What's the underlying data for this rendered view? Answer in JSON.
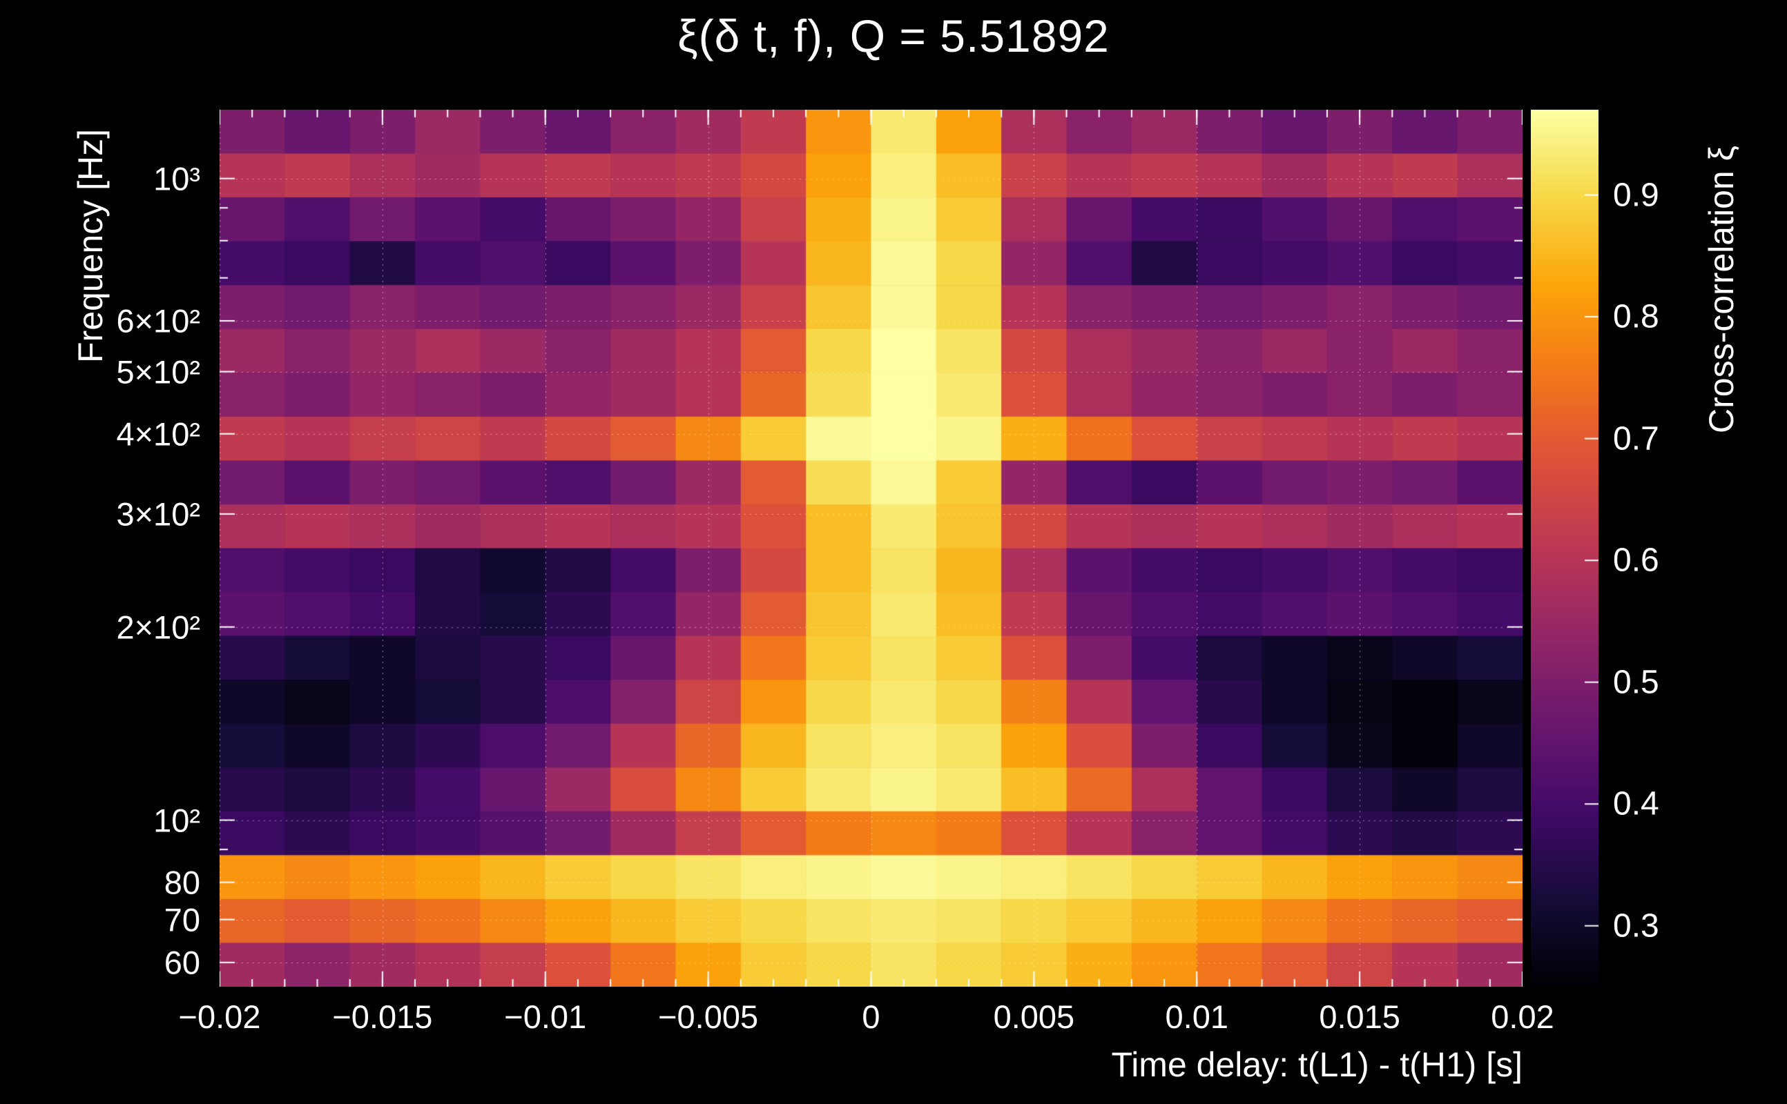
{
  "background_color": "#000000",
  "text_color": "#ffffff",
  "chart_data": {
    "type": "heatmap",
    "title": "ξ(δ t, f), Q = 5.51892",
    "xlabel": "Time delay: t(L1) - t(H1) [s]",
    "ylabel": "Frequency [Hz]",
    "colorbar_label": "Cross-correlation ξ",
    "x_range": [
      -0.02,
      0.02
    ],
    "x_ticks": [
      -0.02,
      -0.015,
      -0.01,
      -0.005,
      0,
      0.005,
      0.01,
      0.015,
      0.02
    ],
    "x_tick_labels": [
      "−0.02",
      "−0.015",
      "−0.01",
      "−0.005",
      "0",
      "0.005",
      "0.01",
      "0.015",
      "0.02"
    ],
    "x_minor_tick_step": 0.001,
    "y_scale": "log",
    "y_range": [
      55,
      1280
    ],
    "y_ticks": [
      1000,
      600,
      500,
      400,
      300,
      200,
      100,
      80,
      70,
      60
    ],
    "y_tick_labels": [
      "10³",
      "6×10²",
      "5×10²",
      "4×10²",
      "3×10²",
      "2×10²",
      "10²",
      "80",
      "70",
      "60"
    ],
    "y_minor_ticks": [
      90,
      700,
      800,
      900
    ],
    "grid": "dotted-white",
    "legend_position": "right-colorbar",
    "color_range": [
      0.25,
      0.97
    ],
    "colorbar_ticks": [
      0.3,
      0.4,
      0.5,
      0.6,
      0.7,
      0.8,
      0.9
    ],
    "colorbar_tick_labels": [
      "0.3",
      "0.4",
      "0.5",
      "0.6",
      "0.7",
      "0.8",
      "0.9"
    ],
    "colormap": "inferno",
    "colormap_stops": [
      "#000004",
      "#160b39",
      "#420a68",
      "#6a176e",
      "#932667",
      "#bc3754",
      "#dd513a",
      "#f37819",
      "#fca50a",
      "#f6d746",
      "#fcffa4"
    ],
    "x_bins": {
      "n": 20,
      "min": -0.02,
      "max": 0.02
    },
    "y_bins": {
      "n": 20,
      "min": 55,
      "max": 1280,
      "scale": "log"
    },
    "y_bin_centers_hz": [
      1173,
      1003,
      857,
      733,
      626,
      535,
      458,
      391,
      334,
      286,
      244,
      209,
      178,
      153,
      130,
      111,
      95,
      82,
      70,
      60
    ],
    "row_order": "top-to-bottom (high frequency to low frequency)",
    "values": [
      [
        0.5,
        0.46,
        0.5,
        0.55,
        0.5,
        0.46,
        0.52,
        0.56,
        0.62,
        0.8,
        0.93,
        0.82,
        0.58,
        0.52,
        0.55,
        0.5,
        0.46,
        0.5,
        0.46,
        0.5
      ],
      [
        0.6,
        0.62,
        0.58,
        0.56,
        0.6,
        0.62,
        0.6,
        0.62,
        0.66,
        0.82,
        0.94,
        0.86,
        0.64,
        0.6,
        0.62,
        0.6,
        0.56,
        0.6,
        0.62,
        0.58
      ],
      [
        0.46,
        0.42,
        0.48,
        0.44,
        0.4,
        0.46,
        0.5,
        0.54,
        0.64,
        0.84,
        0.95,
        0.88,
        0.58,
        0.46,
        0.4,
        0.38,
        0.42,
        0.46,
        0.42,
        0.44
      ],
      [
        0.4,
        0.38,
        0.34,
        0.4,
        0.42,
        0.38,
        0.44,
        0.5,
        0.6,
        0.85,
        0.96,
        0.9,
        0.54,
        0.42,
        0.34,
        0.38,
        0.4,
        0.42,
        0.38,
        0.4
      ],
      [
        0.5,
        0.48,
        0.52,
        0.5,
        0.48,
        0.5,
        0.52,
        0.55,
        0.64,
        0.87,
        0.96,
        0.9,
        0.6,
        0.52,
        0.5,
        0.48,
        0.5,
        0.52,
        0.5,
        0.48
      ],
      [
        0.55,
        0.52,
        0.55,
        0.58,
        0.55,
        0.52,
        0.56,
        0.6,
        0.7,
        0.9,
        0.97,
        0.92,
        0.66,
        0.58,
        0.55,
        0.52,
        0.55,
        0.52,
        0.55,
        0.52
      ],
      [
        0.52,
        0.5,
        0.54,
        0.52,
        0.5,
        0.54,
        0.56,
        0.6,
        0.72,
        0.91,
        0.97,
        0.93,
        0.68,
        0.58,
        0.54,
        0.52,
        0.5,
        0.52,
        0.5,
        0.52
      ],
      [
        0.62,
        0.6,
        0.63,
        0.65,
        0.62,
        0.66,
        0.7,
        0.78,
        0.88,
        0.96,
        0.98,
        0.95,
        0.84,
        0.74,
        0.68,
        0.64,
        0.62,
        0.6,
        0.62,
        0.6
      ],
      [
        0.48,
        0.44,
        0.5,
        0.48,
        0.44,
        0.42,
        0.48,
        0.55,
        0.7,
        0.91,
        0.96,
        0.88,
        0.54,
        0.42,
        0.38,
        0.44,
        0.48,
        0.5,
        0.48,
        0.44
      ],
      [
        0.58,
        0.6,
        0.58,
        0.56,
        0.58,
        0.6,
        0.58,
        0.6,
        0.68,
        0.86,
        0.93,
        0.87,
        0.66,
        0.6,
        0.58,
        0.6,
        0.58,
        0.56,
        0.58,
        0.6
      ],
      [
        0.42,
        0.4,
        0.38,
        0.34,
        0.31,
        0.34,
        0.4,
        0.5,
        0.66,
        0.86,
        0.92,
        0.85,
        0.58,
        0.44,
        0.4,
        0.38,
        0.4,
        0.42,
        0.4,
        0.38
      ],
      [
        0.44,
        0.42,
        0.4,
        0.34,
        0.32,
        0.36,
        0.42,
        0.54,
        0.7,
        0.87,
        0.93,
        0.86,
        0.62,
        0.46,
        0.42,
        0.4,
        0.42,
        0.44,
        0.42,
        0.4
      ],
      [
        0.35,
        0.32,
        0.3,
        0.33,
        0.35,
        0.38,
        0.46,
        0.6,
        0.75,
        0.88,
        0.92,
        0.88,
        0.68,
        0.5,
        0.4,
        0.33,
        0.3,
        0.28,
        0.3,
        0.32
      ],
      [
        0.3,
        0.28,
        0.3,
        0.32,
        0.35,
        0.41,
        0.51,
        0.65,
        0.8,
        0.9,
        0.93,
        0.9,
        0.77,
        0.6,
        0.45,
        0.35,
        0.3,
        0.27,
        0.26,
        0.28
      ],
      [
        0.32,
        0.3,
        0.33,
        0.36,
        0.41,
        0.48,
        0.6,
        0.72,
        0.85,
        0.92,
        0.94,
        0.92,
        0.82,
        0.67,
        0.5,
        0.38,
        0.32,
        0.28,
        0.26,
        0.3
      ],
      [
        0.35,
        0.33,
        0.36,
        0.4,
        0.46,
        0.55,
        0.67,
        0.78,
        0.88,
        0.93,
        0.95,
        0.93,
        0.86,
        0.73,
        0.58,
        0.45,
        0.38,
        0.33,
        0.3,
        0.33
      ],
      [
        0.38,
        0.36,
        0.38,
        0.4,
        0.43,
        0.48,
        0.56,
        0.63,
        0.7,
        0.76,
        0.78,
        0.76,
        0.68,
        0.6,
        0.52,
        0.45,
        0.4,
        0.36,
        0.34,
        0.36
      ],
      [
        0.8,
        0.78,
        0.8,
        0.82,
        0.85,
        0.88,
        0.9,
        0.92,
        0.94,
        0.95,
        0.96,
        0.95,
        0.94,
        0.92,
        0.9,
        0.88,
        0.85,
        0.82,
        0.8,
        0.78
      ],
      [
        0.72,
        0.7,
        0.72,
        0.74,
        0.78,
        0.82,
        0.85,
        0.88,
        0.9,
        0.92,
        0.93,
        0.92,
        0.9,
        0.88,
        0.85,
        0.82,
        0.78,
        0.74,
        0.72,
        0.7
      ],
      [
        0.56,
        0.53,
        0.56,
        0.59,
        0.63,
        0.68,
        0.75,
        0.82,
        0.88,
        0.9,
        0.92,
        0.9,
        0.88,
        0.84,
        0.8,
        0.75,
        0.7,
        0.65,
        0.6,
        0.56
      ]
    ]
  }
}
